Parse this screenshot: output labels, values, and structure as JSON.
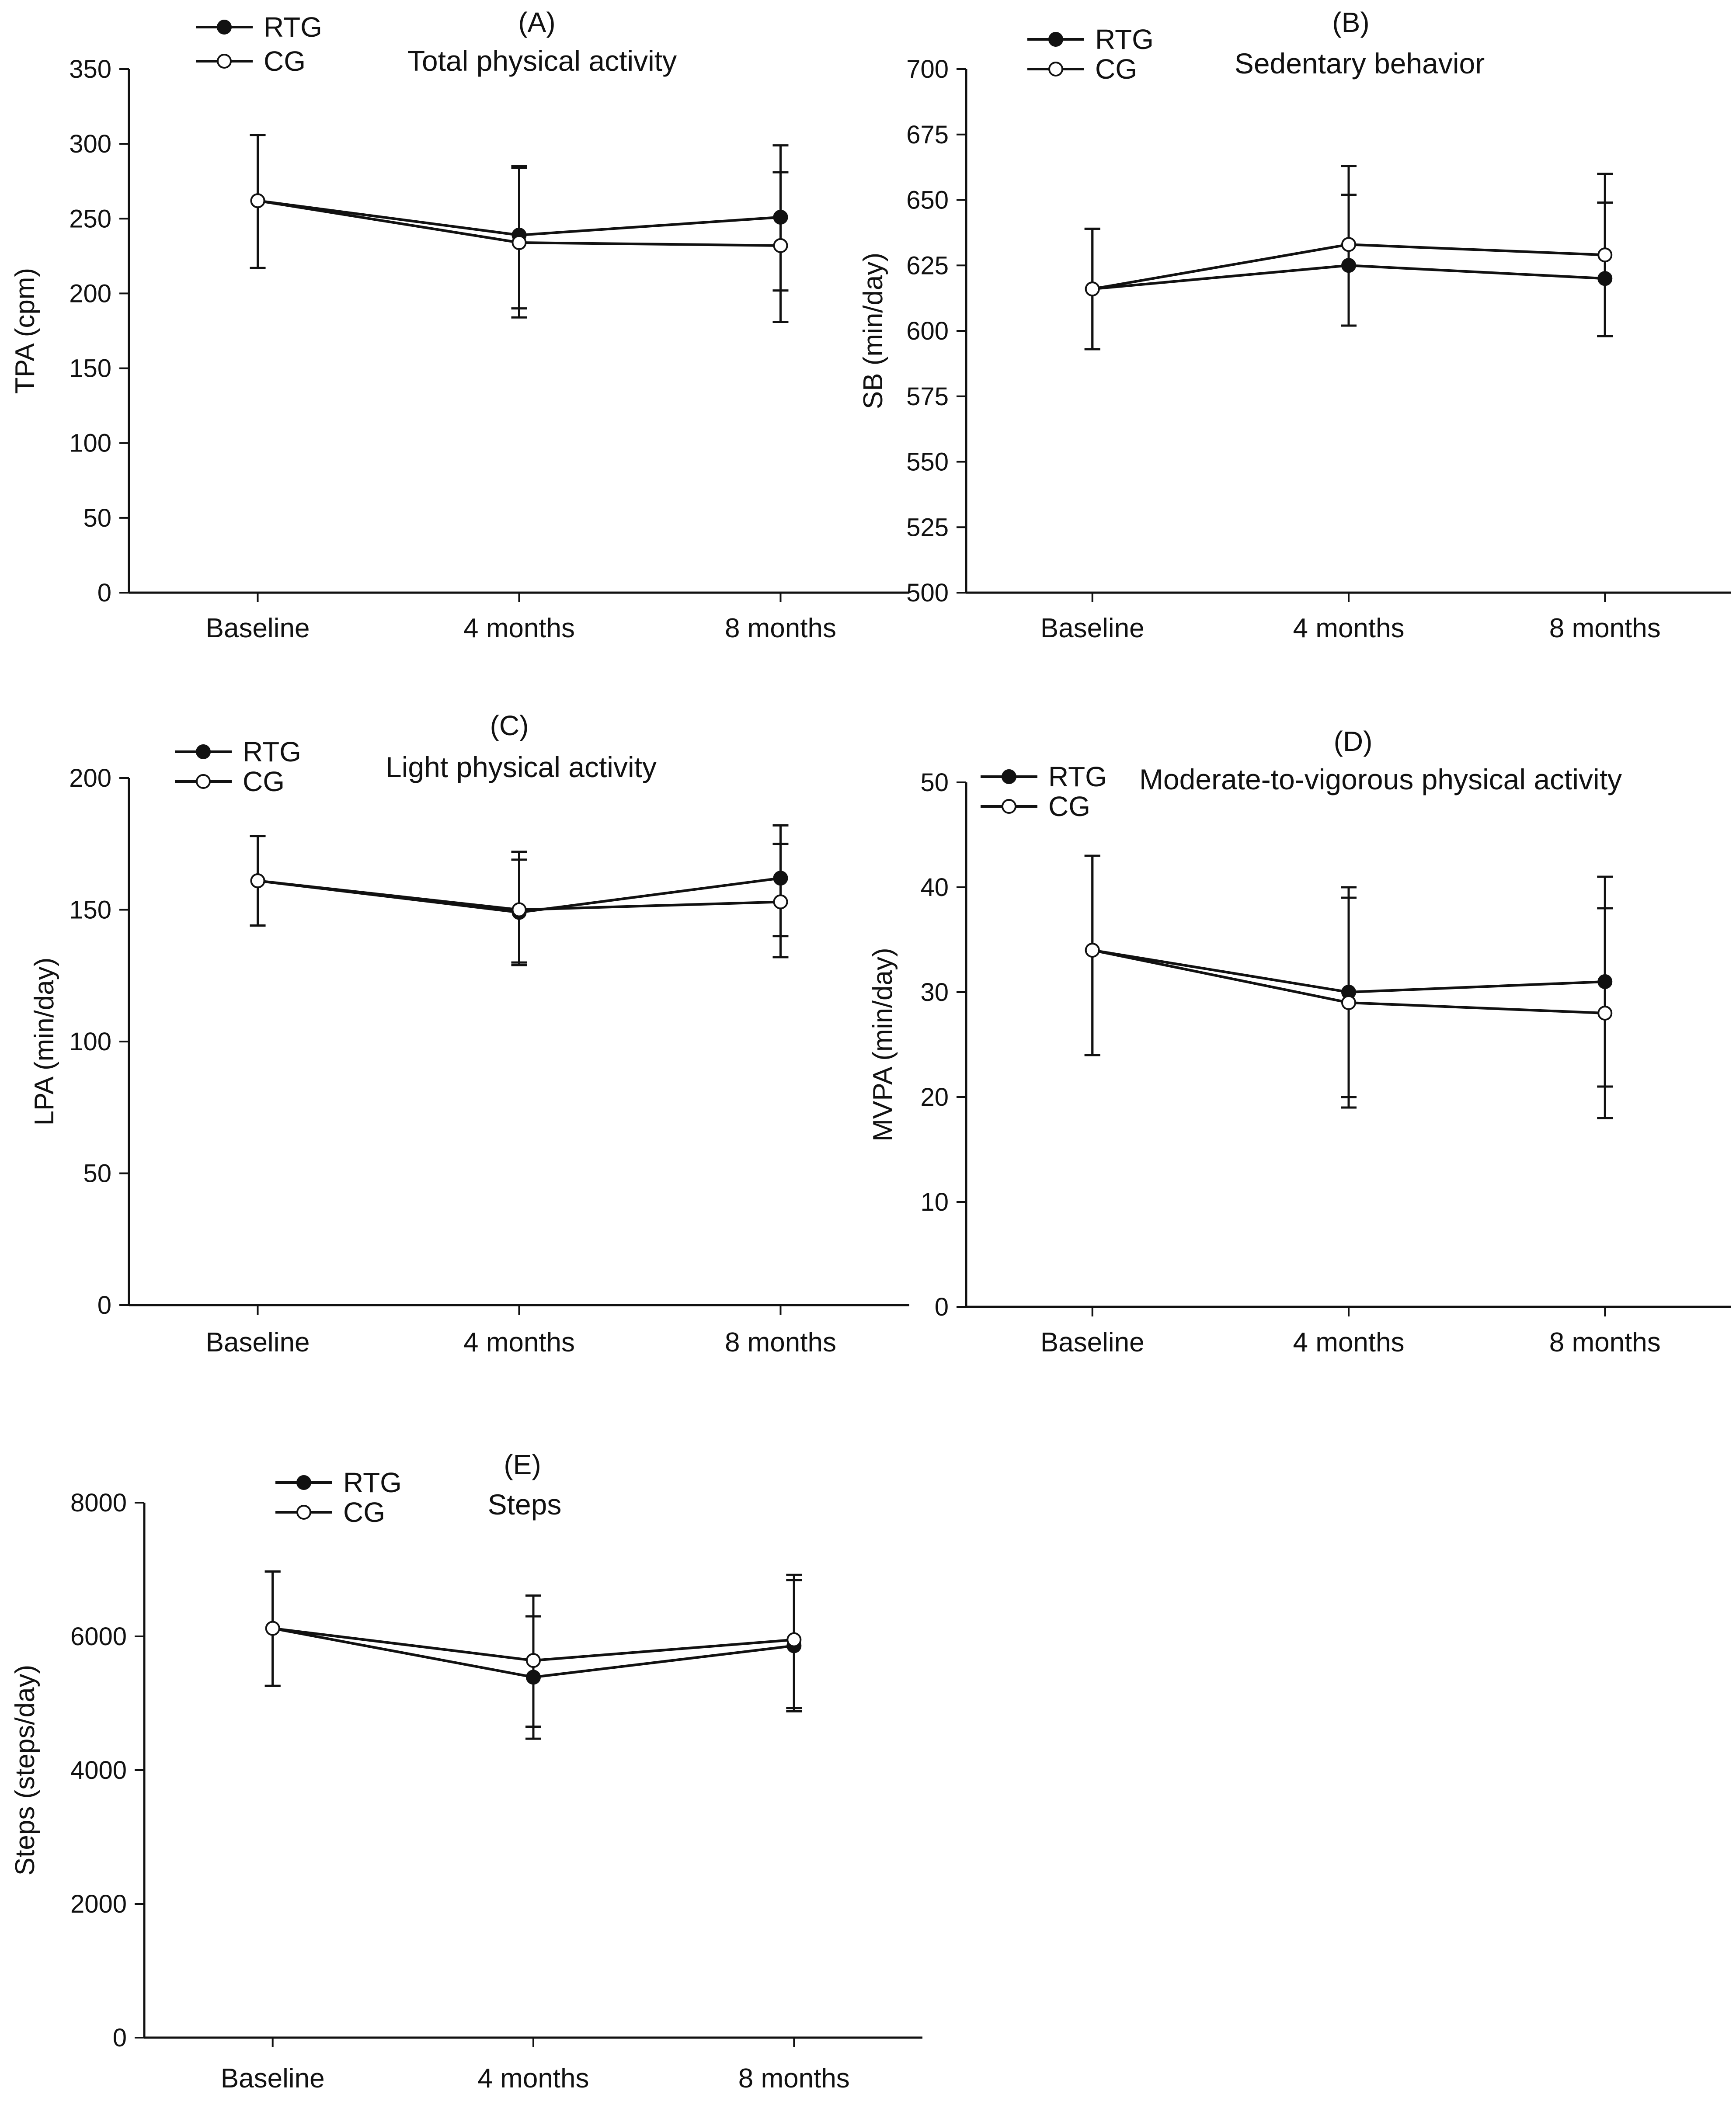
{
  "figure": {
    "background": "#ffffff",
    "ink": "#111111",
    "series_style": {
      "RTG": {
        "marker": "filled-circle",
        "color": "#000000"
      },
      "CG": {
        "marker": "open-circle",
        "color": "#000000"
      }
    }
  },
  "chart_data": [
    {
      "id": "A",
      "type": "line",
      "panel_letter": "(A)",
      "title": "Total physical activity",
      "xlabel": "",
      "ylabel": "TPA (cpm)",
      "categories": [
        "Baseline",
        "4 months",
        "8 months"
      ],
      "ylim": [
        0,
        350
      ],
      "yticks": [
        0,
        50,
        100,
        150,
        200,
        250,
        300,
        350
      ],
      "legend_position": "top-left",
      "series": [
        {
          "name": "RTG",
          "values": [
            262,
            239,
            251
          ],
          "err_low": [
            217,
            190,
            202
          ],
          "err_high": [
            306,
            284,
            281
          ]
        },
        {
          "name": "CG",
          "values": [
            262,
            234,
            232
          ],
          "err_low": [
            217,
            184,
            181
          ],
          "err_high": [
            306,
            285,
            299
          ]
        }
      ]
    },
    {
      "id": "B",
      "type": "line",
      "panel_letter": "(B)",
      "title": "Sedentary behavior",
      "xlabel": "",
      "ylabel": "SB (min/day)",
      "categories": [
        "Baseline",
        "4 months",
        "8 months"
      ],
      "ylim": [
        500,
        700
      ],
      "yticks": [
        500,
        525,
        550,
        575,
        600,
        625,
        650,
        675,
        700
      ],
      "legend_position": "top-left",
      "series": [
        {
          "name": "RTG",
          "values": [
            616,
            625,
            620
          ],
          "err_low": [
            593,
            602,
            598
          ],
          "err_high": [
            639,
            652,
            649
          ]
        },
        {
          "name": "CG",
          "values": [
            616,
            633,
            629
          ],
          "err_low": [
            593,
            602,
            598
          ],
          "err_high": [
            639,
            663,
            660
          ]
        }
      ]
    },
    {
      "id": "C",
      "type": "line",
      "panel_letter": "(C)",
      "title": "Light physical activity",
      "xlabel": "",
      "ylabel": "LPA (min/day)",
      "categories": [
        "Baseline",
        "4 months",
        "8 months"
      ],
      "ylim": [
        0,
        200
      ],
      "yticks": [
        0,
        50,
        100,
        150,
        200
      ],
      "legend_position": "top-left",
      "series": [
        {
          "name": "RTG",
          "values": [
            161,
            149,
            162
          ],
          "err_low": [
            144,
            129,
            140
          ],
          "err_high": [
            178,
            169,
            182
          ]
        },
        {
          "name": "CG",
          "values": [
            161,
            150,
            153
          ],
          "err_low": [
            144,
            130,
            132
          ],
          "err_high": [
            178,
            172,
            175
          ]
        }
      ]
    },
    {
      "id": "D",
      "type": "line",
      "panel_letter": "(D)",
      "title": "Moderate-to-vigorous physical activity",
      "xlabel": "",
      "ylabel": "MVPA (min/day)",
      "categories": [
        "Baseline",
        "4 months",
        "8 months"
      ],
      "ylim": [
        0,
        50
      ],
      "yticks": [
        0,
        10,
        20,
        30,
        40,
        50
      ],
      "legend_position": "top-left",
      "series": [
        {
          "name": "RTG",
          "values": [
            34,
            30,
            31
          ],
          "err_low": [
            24,
            20,
            21
          ],
          "err_high": [
            43,
            40,
            41
          ]
        },
        {
          "name": "CG",
          "values": [
            34,
            29,
            28
          ],
          "err_low": [
            24,
            19,
            18
          ],
          "err_high": [
            43,
            39,
            38
          ]
        }
      ]
    },
    {
      "id": "E",
      "type": "line",
      "panel_letter": "(E)",
      "title": "Steps",
      "xlabel": "",
      "ylabel": "Steps (steps/day)",
      "categories": [
        "Baseline",
        "4 months",
        "8 months"
      ],
      "ylim": [
        0,
        8000
      ],
      "yticks": [
        0,
        2000,
        4000,
        6000,
        8000
      ],
      "legend_position": "top-left",
      "series": [
        {
          "name": "RTG",
          "values": [
            6120,
            5390,
            5860
          ],
          "err_low": [
            5260,
            4470,
            4880
          ],
          "err_high": [
            6970,
            6300,
            6840
          ]
        },
        {
          "name": "CG",
          "values": [
            6120,
            5640,
            5950
          ],
          "err_low": [
            5260,
            4650,
            4930
          ],
          "err_high": [
            6970,
            6610,
            6920
          ]
        }
      ]
    }
  ]
}
